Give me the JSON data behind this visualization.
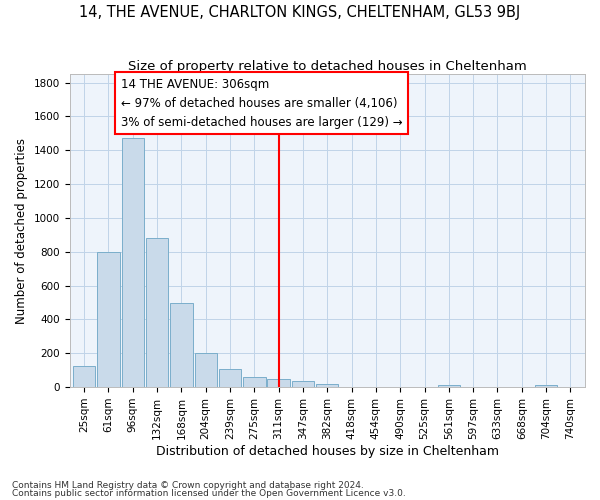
{
  "title": "14, THE AVENUE, CHARLTON KINGS, CHELTENHAM, GL53 9BJ",
  "subtitle": "Size of property relative to detached houses in Cheltenham",
  "xlabel": "Distribution of detached houses by size in Cheltenham",
  "ylabel": "Number of detached properties",
  "footnote1": "Contains HM Land Registry data © Crown copyright and database right 2024.",
  "footnote2": "Contains public sector information licensed under the Open Government Licence v3.0.",
  "bin_labels": [
    "25sqm",
    "61sqm",
    "96sqm",
    "132sqm",
    "168sqm",
    "204sqm",
    "239sqm",
    "275sqm",
    "311sqm",
    "347sqm",
    "382sqm",
    "418sqm",
    "454sqm",
    "490sqm",
    "525sqm",
    "561sqm",
    "597sqm",
    "633sqm",
    "668sqm",
    "704sqm",
    "740sqm"
  ],
  "bar_heights": [
    125,
    800,
    1470,
    880,
    500,
    200,
    105,
    60,
    45,
    35,
    20,
    0,
    0,
    0,
    0,
    10,
    0,
    0,
    0,
    10,
    0
  ],
  "bar_color": "#c9daea",
  "bar_edge_color": "#7aaecb",
  "grid_color": "#c0d4e8",
  "background_color": "#eef4fb",
  "vline_color": "red",
  "annotation_box_color": "red",
  "annotation_text_color": "black",
  "ylim": [
    0,
    1850
  ],
  "yticks": [
    0,
    200,
    400,
    600,
    800,
    1000,
    1200,
    1400,
    1600,
    1800
  ],
  "title_fontsize": 10.5,
  "subtitle_fontsize": 9.5,
  "xlabel_fontsize": 9,
  "ylabel_fontsize": 8.5,
  "tick_fontsize": 7.5,
  "annotation_fontsize": 8.5,
  "footnote_fontsize": 6.5
}
